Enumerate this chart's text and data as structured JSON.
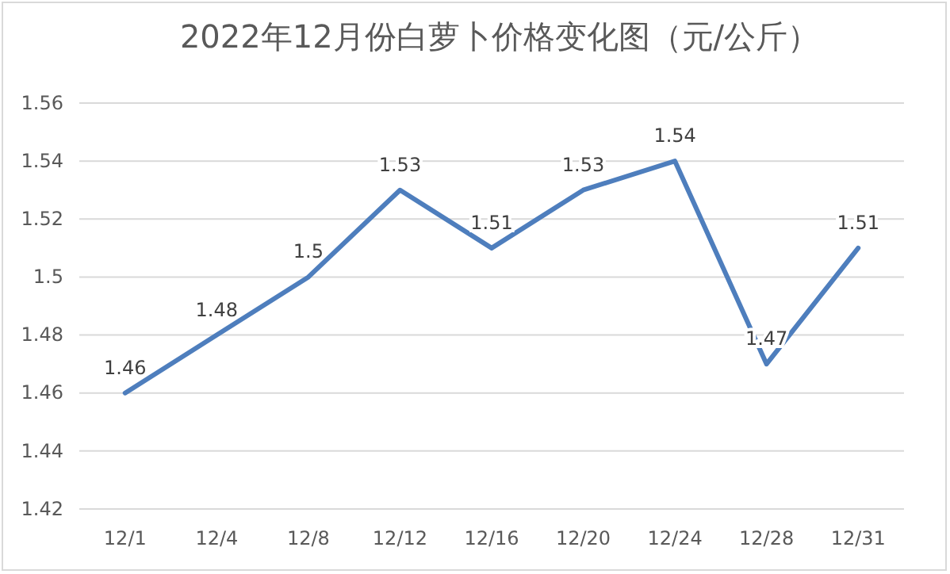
{
  "chart_data": {
    "type": "line",
    "title": "2022年12月份白萝卜价格变化图（元/公斤）",
    "categories": [
      "12/1",
      "12/4",
      "12/8",
      "12/12",
      "12/16",
      "12/20",
      "12/24",
      "12/28",
      "12/31"
    ],
    "series": [
      {
        "color": "#4e7ebd",
        "values": [
          1.46,
          1.48,
          1.5,
          1.53,
          1.51,
          1.53,
          1.54,
          1.47,
          1.51
        ]
      }
    ],
    "ylim": [
      1.42,
      1.56
    ],
    "yticks": [
      1.42,
      1.44,
      1.46,
      1.48,
      1.5,
      1.52,
      1.54,
      1.56
    ],
    "grid": "y",
    "data_labels": true,
    "marker": "none",
    "line_style": "solid"
  }
}
